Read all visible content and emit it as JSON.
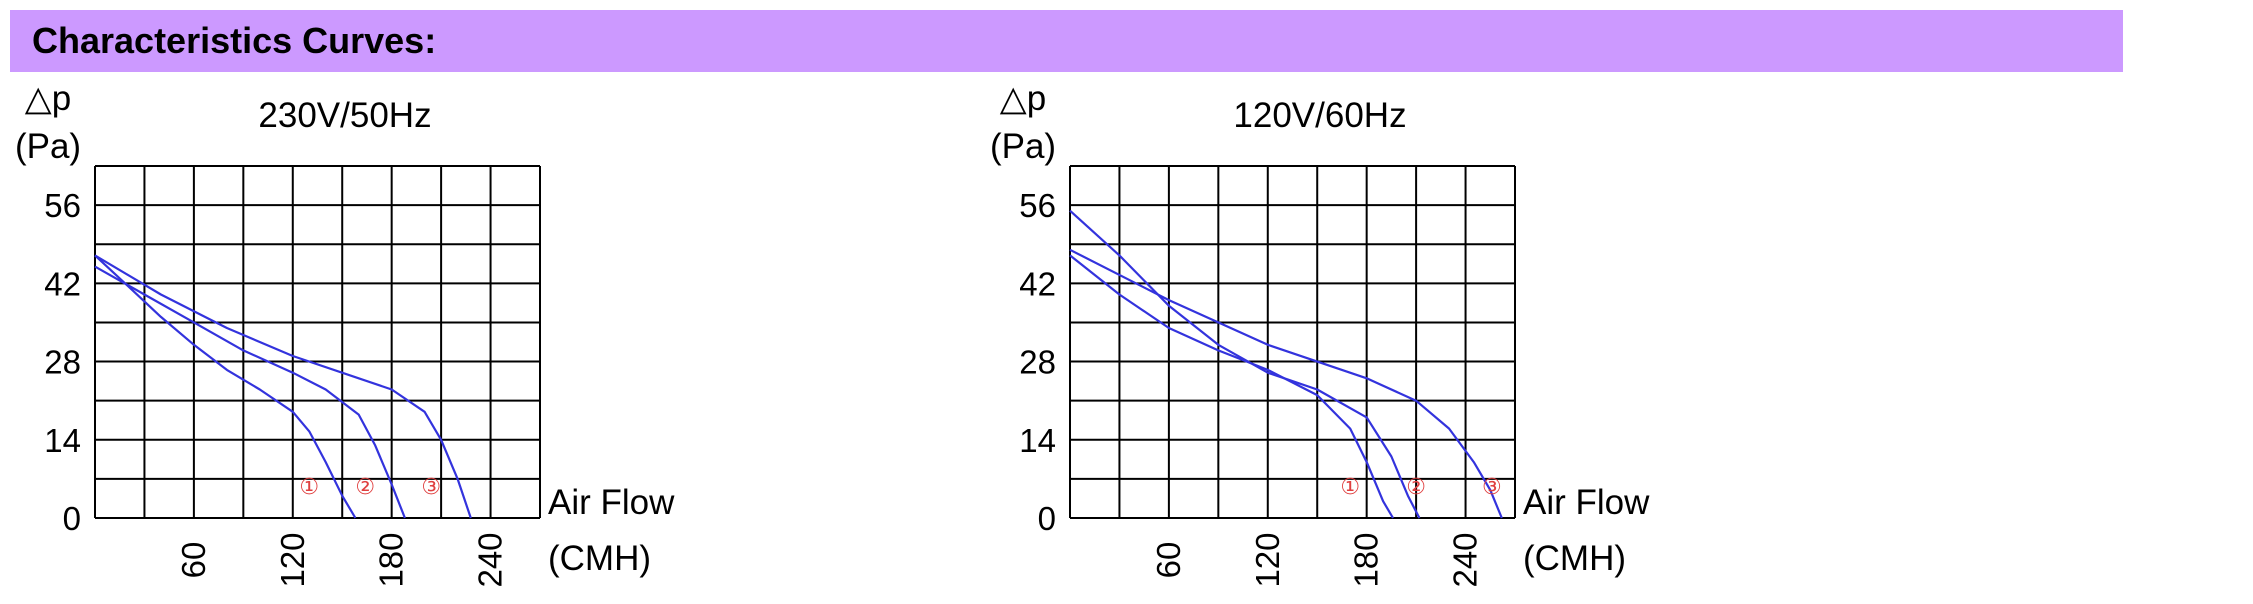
{
  "header": {
    "title": "Characteristics Curves:",
    "bg_color": "#cc99ff"
  },
  "colors": {
    "curve": "#3333dd",
    "marker": "#e04040",
    "grid": "#000000"
  },
  "chart_data": [
    {
      "type": "line",
      "title": "230V/50Hz",
      "ylabel_symbol": "△p",
      "ylabel_unit": "(Pa)",
      "xlabel": "Air Flow",
      "xlabel_unit": "(CMH)",
      "xlim": [
        0,
        270
      ],
      "ylim": [
        0,
        63
      ],
      "x_ticks": [
        60,
        120,
        180,
        240
      ],
      "y_ticks": [
        0,
        14,
        28,
        42,
        56
      ],
      "grid": true,
      "series": [
        {
          "name": "①",
          "x": [
            0,
            20,
            40,
            60,
            80,
            100,
            120,
            130,
            140,
            150,
            158
          ],
          "y": [
            47,
            41.5,
            36,
            31,
            26.5,
            23,
            19,
            15.5,
            10,
            4,
            0
          ]
        },
        {
          "name": "②",
          "x": [
            0,
            30,
            60,
            90,
            120,
            140,
            160,
            170,
            180,
            188
          ],
          "y": [
            45,
            40,
            35,
            30,
            26,
            23,
            18.5,
            13,
            6,
            0
          ]
        },
        {
          "name": "③",
          "x": [
            0,
            40,
            80,
            120,
            160,
            180,
            200,
            210,
            220,
            228
          ],
          "y": [
            47,
            40,
            34,
            29,
            25,
            23,
            19,
            14,
            7,
            0
          ]
        }
      ],
      "marker_labels": [
        {
          "text": "①",
          "x": 130,
          "y": 5
        },
        {
          "text": "②",
          "x": 164,
          "y": 5
        },
        {
          "text": "③",
          "x": 204,
          "y": 5
        }
      ]
    },
    {
      "type": "line",
      "title": "120V/60Hz",
      "ylabel_symbol": "△p",
      "ylabel_unit": "(Pa)",
      "xlabel": "Air Flow",
      "xlabel_unit": "(CMH)",
      "xlim": [
        0,
        270
      ],
      "ylim": [
        0,
        63
      ],
      "x_ticks": [
        60,
        120,
        180,
        240
      ],
      "y_ticks": [
        0,
        14,
        28,
        42,
        56
      ],
      "grid": true,
      "series": [
        {
          "name": "①",
          "x": [
            0,
            30,
            60,
            90,
            120,
            150,
            170,
            180,
            190,
            196
          ],
          "y": [
            47,
            40,
            34,
            30,
            26.5,
            22,
            16,
            10,
            3,
            0
          ]
        },
        {
          "name": "②",
          "x": [
            0,
            30,
            60,
            90,
            120,
            150,
            180,
            195,
            205,
            212
          ],
          "y": [
            55,
            47,
            38,
            31,
            26,
            23,
            18,
            11,
            4,
            0
          ]
        },
        {
          "name": "③",
          "x": [
            0,
            60,
            120,
            180,
            210,
            230,
            245,
            255,
            262
          ],
          "y": [
            48,
            39,
            31,
            25,
            21,
            16,
            10,
            5,
            0
          ]
        }
      ],
      "marker_labels": [
        {
          "text": "①",
          "x": 170,
          "y": 5
        },
        {
          "text": "②",
          "x": 210,
          "y": 5
        },
        {
          "text": "③",
          "x": 256,
          "y": 5
        }
      ]
    }
  ]
}
